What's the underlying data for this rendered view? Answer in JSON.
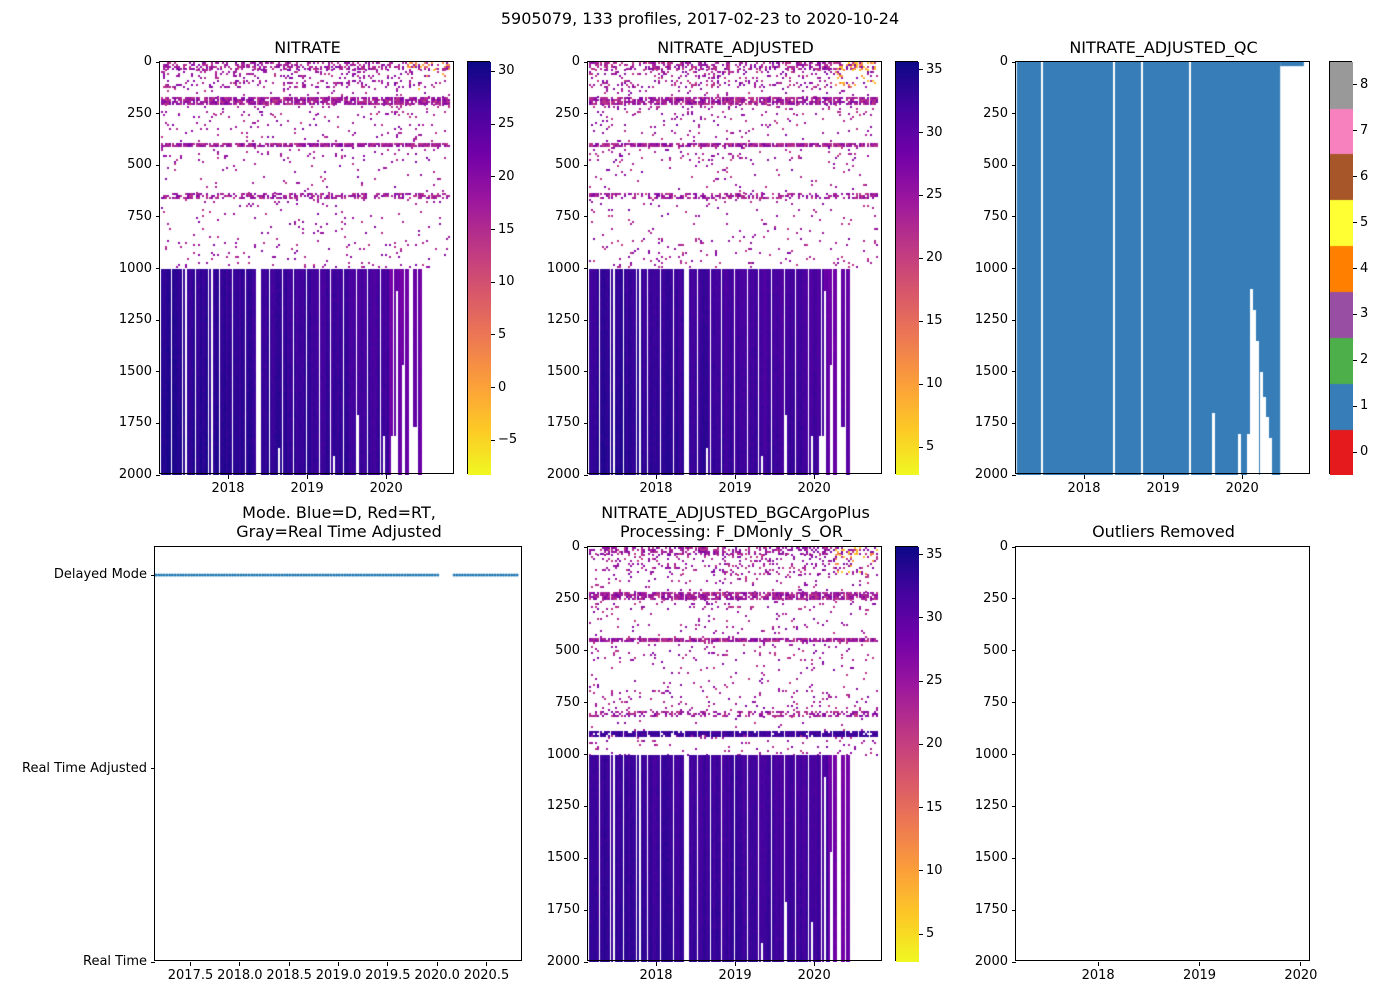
{
  "figure": {
    "suptitle": "5905079, 133 profiles, 2017-02-23 to 2020-10-24"
  },
  "chart_data": [
    {
      "id": "nitrate",
      "type": "heatmap",
      "title": "NITRATE",
      "xlim": [
        2017.14,
        2020.87
      ],
      "x_tick_values": [
        2018,
        2019,
        2020
      ],
      "x_tick_labels": [
        "2018",
        "2019",
        "2020"
      ],
      "ylim": [
        2000,
        0
      ],
      "y_tick_values": [
        0,
        250,
        500,
        750,
        1000,
        1250,
        1500,
        1750,
        2000
      ],
      "y_tick_labels": [
        "0",
        "250",
        "500",
        "750",
        "1000",
        "1250",
        "1500",
        "1750",
        "2000"
      ],
      "colorbar": {
        "colormap": "plasma_r",
        "vmin": -8.3,
        "vmax": 30.9,
        "ticks": [
          30,
          25,
          20,
          15,
          10,
          5,
          0,
          -5
        ],
        "tick_labels": [
          "30",
          "25",
          "20",
          "15",
          "10",
          "5",
          "0",
          "−5"
        ]
      },
      "gen": {
        "seed": 11,
        "t_start": 2017.15,
        "t_end": 2020.81,
        "profiles": 133,
        "bands": [
          {
            "from": 0,
            "to": 35,
            "density": 0.5
          },
          {
            "from": 35,
            "to": 125,
            "density": 0.22
          },
          {
            "from": 125,
            "to": 170,
            "density": 0.06
          },
          {
            "from": 170,
            "to": 205,
            "density": 0.85
          },
          {
            "from": 205,
            "to": 250,
            "density": 0.12
          },
          {
            "from": 250,
            "to": 390,
            "density": 0.05
          },
          {
            "from": 390,
            "to": 410,
            "density": 0.9
          },
          {
            "from": 410,
            "to": 480,
            "density": 0.09
          },
          {
            "from": 480,
            "to": 635,
            "density": 0.03
          },
          {
            "from": 635,
            "to": 662,
            "density": 0.55
          },
          {
            "from": 662,
            "to": 850,
            "density": 0.03
          },
          {
            "from": 850,
            "to": 1000,
            "density": 0.06
          }
        ],
        "shallow_values": [
          13.5,
          21
        ],
        "surface_warm": {
          "t_from": 2020.25,
          "depth_to": 130,
          "values": [
            -4,
            8
          ]
        },
        "deep": {
          "top": 1000,
          "bottom": 2000,
          "t_end": 2020.45,
          "base_start": 29.0,
          "base_mid": 26.8,
          "light_from": 2020.02,
          "light_value": 23.0,
          "stripe_amp": 1.0,
          "noise": 0.8,
          "depth_grad": 1.2
        },
        "gaps": [
          {
            "t": 2017.45,
            "top": 1000
          },
          {
            "t": 2017.79,
            "top": 1000
          },
          {
            "t": 2018.37,
            "top": 1000
          },
          {
            "t": 2018.63,
            "top": 1850
          },
          {
            "t": 2019.33,
            "top": 1900
          },
          {
            "t": 2019.62,
            "top": 1700
          },
          {
            "t": 2019.95,
            "top": 1800
          },
          {
            "t": 2020.08,
            "top": 1800
          },
          {
            "t": 2020.12,
            "top": 1100
          },
          {
            "t": 2020.2,
            "top": 1450
          },
          {
            "t": 2020.3,
            "top": 1000
          },
          {
            "t": 2020.36,
            "top": 1750
          }
        ]
      }
    },
    {
      "id": "adjusted",
      "type": "heatmap",
      "title": "NITRATE_ADJUSTED",
      "xlim": [
        2017.14,
        2020.87
      ],
      "x_tick_values": [
        2018,
        2019,
        2020
      ],
      "x_tick_labels": [
        "2018",
        "2019",
        "2020"
      ],
      "ylim": [
        2000,
        0
      ],
      "y_tick_values": [
        0,
        250,
        500,
        750,
        1000,
        1250,
        1500,
        1750,
        2000
      ],
      "y_tick_labels": [
        "0",
        "250",
        "500",
        "750",
        "1000",
        "1250",
        "1500",
        "1750",
        "2000"
      ],
      "colorbar": {
        "colormap": "plasma_r",
        "vmin": 2.8,
        "vmax": 35.6,
        "ticks": [
          35,
          30,
          25,
          20,
          15,
          10,
          5
        ],
        "tick_labels": [
          "35",
          "30",
          "25",
          "20",
          "15",
          "10",
          "5"
        ]
      },
      "gen": {
        "seed": 23,
        "t_start": 2017.15,
        "t_end": 2020.81,
        "profiles": 133,
        "bands": [
          {
            "from": 0,
            "to": 35,
            "density": 0.5
          },
          {
            "from": 35,
            "to": 125,
            "density": 0.22
          },
          {
            "from": 125,
            "to": 170,
            "density": 0.06
          },
          {
            "from": 170,
            "to": 205,
            "density": 0.85
          },
          {
            "from": 205,
            "to": 250,
            "density": 0.12
          },
          {
            "from": 250,
            "to": 390,
            "density": 0.05
          },
          {
            "from": 390,
            "to": 410,
            "density": 0.9
          },
          {
            "from": 410,
            "to": 480,
            "density": 0.09
          },
          {
            "from": 480,
            "to": 635,
            "density": 0.03
          },
          {
            "from": 635,
            "to": 662,
            "density": 0.55
          },
          {
            "from": 662,
            "to": 850,
            "density": 0.03
          },
          {
            "from": 850,
            "to": 1000,
            "density": 0.06
          }
        ],
        "shallow_values": [
          20.5,
          27.5
        ],
        "surface_warm": {
          "t_from": 2020.25,
          "depth_to": 130,
          "values": [
            6,
            14
          ]
        },
        "deep": {
          "top": 1000,
          "bottom": 2000,
          "t_end": 2020.45,
          "base_start": 33.4,
          "base_mid": 31.8,
          "light_from": 2020.1,
          "light_value": 29.5,
          "stripe_amp": 0.8,
          "noise": 0.7,
          "depth_grad": 1.0
        },
        "gaps": [
          {
            "t": 2017.45,
            "top": 1000
          },
          {
            "t": 2017.79,
            "top": 1000
          },
          {
            "t": 2018.37,
            "top": 1000
          },
          {
            "t": 2018.63,
            "top": 1850
          },
          {
            "t": 2019.33,
            "top": 1900
          },
          {
            "t": 2019.62,
            "top": 1700
          },
          {
            "t": 2019.95,
            "top": 1800
          },
          {
            "t": 2020.08,
            "top": 1800
          },
          {
            "t": 2020.12,
            "top": 1100
          },
          {
            "t": 2020.2,
            "top": 1450
          },
          {
            "t": 2020.3,
            "top": 1000
          },
          {
            "t": 2020.36,
            "top": 1750
          }
        ]
      }
    },
    {
      "id": "qc",
      "type": "heatmap",
      "title": "NITRATE_ADJUSTED_QC",
      "xlim": [
        2017.14,
        2020.87
      ],
      "x_tick_values": [
        2018,
        2019,
        2020
      ],
      "x_tick_labels": [
        "2018",
        "2019",
        "2020"
      ],
      "ylim": [
        2000,
        0
      ],
      "y_tick_values": [
        0,
        250,
        500,
        750,
        1000,
        1250,
        1500,
        1750,
        2000
      ],
      "y_tick_labels": [
        "0",
        "250",
        "500",
        "750",
        "1000",
        "1250",
        "1500",
        "1750",
        "2000"
      ],
      "colorbar": {
        "type": "discrete",
        "ticks": [
          0,
          1,
          2,
          3,
          4,
          5,
          6,
          7,
          8
        ],
        "tick_labels": [
          "0",
          "1",
          "2",
          "3",
          "4",
          "5",
          "6",
          "7",
          "8"
        ],
        "colors": [
          "#e41a1c",
          "#377eb8",
          "#4daf4a",
          "#984ea3",
          "#ff7f00",
          "#ffff33",
          "#a65628",
          "#f781bf",
          "#999999"
        ]
      },
      "qc": {
        "dominant_qc_value": 1,
        "fill": "#377eb8",
        "t_start": 2017.15,
        "t_end": 2020.48,
        "surface_line": {
          "t_end": 2020.78,
          "depth": 20
        },
        "gaps": [
          {
            "t": 2017.45,
            "top": 0
          },
          {
            "t": 2018.37,
            "top": 0
          },
          {
            "t": 2018.72,
            "top": 0
          },
          {
            "t": 2019.33,
            "top": 0
          },
          {
            "t": 2019.62,
            "top": 1700
          },
          {
            "t": 2019.95,
            "top": 1800
          },
          {
            "t": 2020.06,
            "top": 1800
          },
          {
            "t": 2020.1,
            "top": 1100
          },
          {
            "t": 2020.14,
            "top": 1200
          },
          {
            "t": 2020.18,
            "top": 1350
          },
          {
            "t": 2020.22,
            "top": 1500
          },
          {
            "t": 2020.26,
            "top": 1620
          },
          {
            "t": 2020.3,
            "top": 1720
          },
          {
            "t": 2020.34,
            "top": 1820
          }
        ]
      }
    },
    {
      "id": "mode",
      "type": "scatter",
      "title_lines": [
        "Mode. Blue=D, Red=RT,",
        "Gray=Real Time Adjusted"
      ],
      "xlim": [
        2017.14,
        2020.87
      ],
      "x_tick_values": [
        2017.5,
        2018,
        2018.5,
        2019,
        2019.5,
        2020,
        2020.5
      ],
      "x_tick_labels": [
        "2017.5",
        "2018.0",
        "2018.5",
        "2019.0",
        "2019.5",
        "2020.0",
        "2020.5"
      ],
      "ylim": [
        0,
        2.145
      ],
      "y_categories": [
        {
          "label": "Delayed Mode",
          "value": 2
        },
        {
          "label": "Real Time Adjusted",
          "value": 1
        },
        {
          "label": "Real Time",
          "value": 0
        }
      ],
      "series": [
        {
          "name": "Delayed Mode",
          "mode": "D",
          "color": "#1f77b4",
          "value": 2,
          "t_start": 2017.15,
          "t_end": 2020.81,
          "count": 133,
          "gaps": [
            [
              2020.02,
              2020.17
            ]
          ]
        }
      ]
    },
    {
      "id": "bgc",
      "type": "heatmap",
      "title_lines": [
        "NITRATE_ADJUSTED_BGCArgoPlus",
        "Processing: F_DMonly_S_OR_"
      ],
      "xlim": [
        2017.14,
        2020.87
      ],
      "x_tick_values": [
        2018,
        2019,
        2020
      ],
      "x_tick_labels": [
        "2018",
        "2019",
        "2020"
      ],
      "ylim": [
        2000,
        0
      ],
      "y_tick_values": [
        0,
        250,
        500,
        750,
        1000,
        1250,
        1500,
        1750,
        2000
      ],
      "y_tick_labels": [
        "0",
        "250",
        "500",
        "750",
        "1000",
        "1250",
        "1500",
        "1750",
        "2000"
      ],
      "colorbar": {
        "colormap": "plasma_r",
        "vmin": 2.8,
        "vmax": 35.6,
        "ticks": [
          35,
          30,
          25,
          20,
          15,
          10,
          5
        ],
        "tick_labels": [
          "35",
          "30",
          "25",
          "20",
          "15",
          "10",
          "5"
        ]
      },
      "gen": {
        "seed": 37,
        "t_start": 2017.15,
        "t_end": 2020.81,
        "profiles": 133,
        "bands": [
          {
            "from": 0,
            "to": 35,
            "density": 0.5
          },
          {
            "from": 35,
            "to": 130,
            "density": 0.2
          },
          {
            "from": 130,
            "to": 215,
            "density": 0.06
          },
          {
            "from": 215,
            "to": 252,
            "density": 0.85
          },
          {
            "from": 252,
            "to": 300,
            "density": 0.12
          },
          {
            "from": 300,
            "to": 440,
            "density": 0.05
          },
          {
            "from": 440,
            "to": 458,
            "density": 0.9
          },
          {
            "from": 458,
            "to": 540,
            "density": 0.08
          },
          {
            "from": 540,
            "to": 690,
            "density": 0.04
          },
          {
            "from": 690,
            "to": 790,
            "density": 0.1
          },
          {
            "from": 790,
            "to": 815,
            "density": 0.5
          },
          {
            "from": 815,
            "to": 885,
            "density": 0.04
          },
          {
            "from": 885,
            "to": 908,
            "density": 0.95,
            "values": [
              31,
              33.5
            ]
          },
          {
            "from": 908,
            "to": 1000,
            "density": 0.06
          }
        ],
        "shallow_values": [
          20.5,
          27.5
        ],
        "surface_warm": {
          "t_from": 2020.25,
          "depth_to": 130,
          "values": [
            6,
            14
          ]
        },
        "deep": {
          "top": 1000,
          "bottom": 2000,
          "t_end": 2020.45,
          "base_start": 33.0,
          "base_mid": 32.0,
          "light_from": 2020.15,
          "light_value": 28.5,
          "stripe_amp": 0.8,
          "noise": 0.7,
          "depth_grad": 0.8
        },
        "gaps": [
          {
            "t": 2017.45,
            "top": 1000
          },
          {
            "t": 2017.79,
            "top": 1000
          },
          {
            "t": 2018.37,
            "top": 1000
          },
          {
            "t": 2019.33,
            "top": 1900
          },
          {
            "t": 2019.62,
            "top": 1700
          },
          {
            "t": 2019.95,
            "top": 1800
          },
          {
            "t": 2020.12,
            "top": 1100
          },
          {
            "t": 2020.2,
            "top": 1450
          },
          {
            "t": 2020.3,
            "top": 1000
          }
        ]
      }
    },
    {
      "id": "outliers",
      "type": "empty",
      "title": "Outliers Removed",
      "xlim": [
        2017.19,
        2020.1
      ],
      "x_tick_values": [
        2018,
        2019,
        2020
      ],
      "x_tick_labels": [
        "2018",
        "2019",
        "2020"
      ],
      "ylim": [
        2000,
        0
      ],
      "y_tick_values": [
        0,
        250,
        500,
        750,
        1000,
        1250,
        1500,
        1750,
        2000
      ],
      "y_tick_labels": [
        "0",
        "250",
        "500",
        "750",
        "1000",
        "1250",
        "1500",
        "1750",
        "2000"
      ]
    }
  ]
}
